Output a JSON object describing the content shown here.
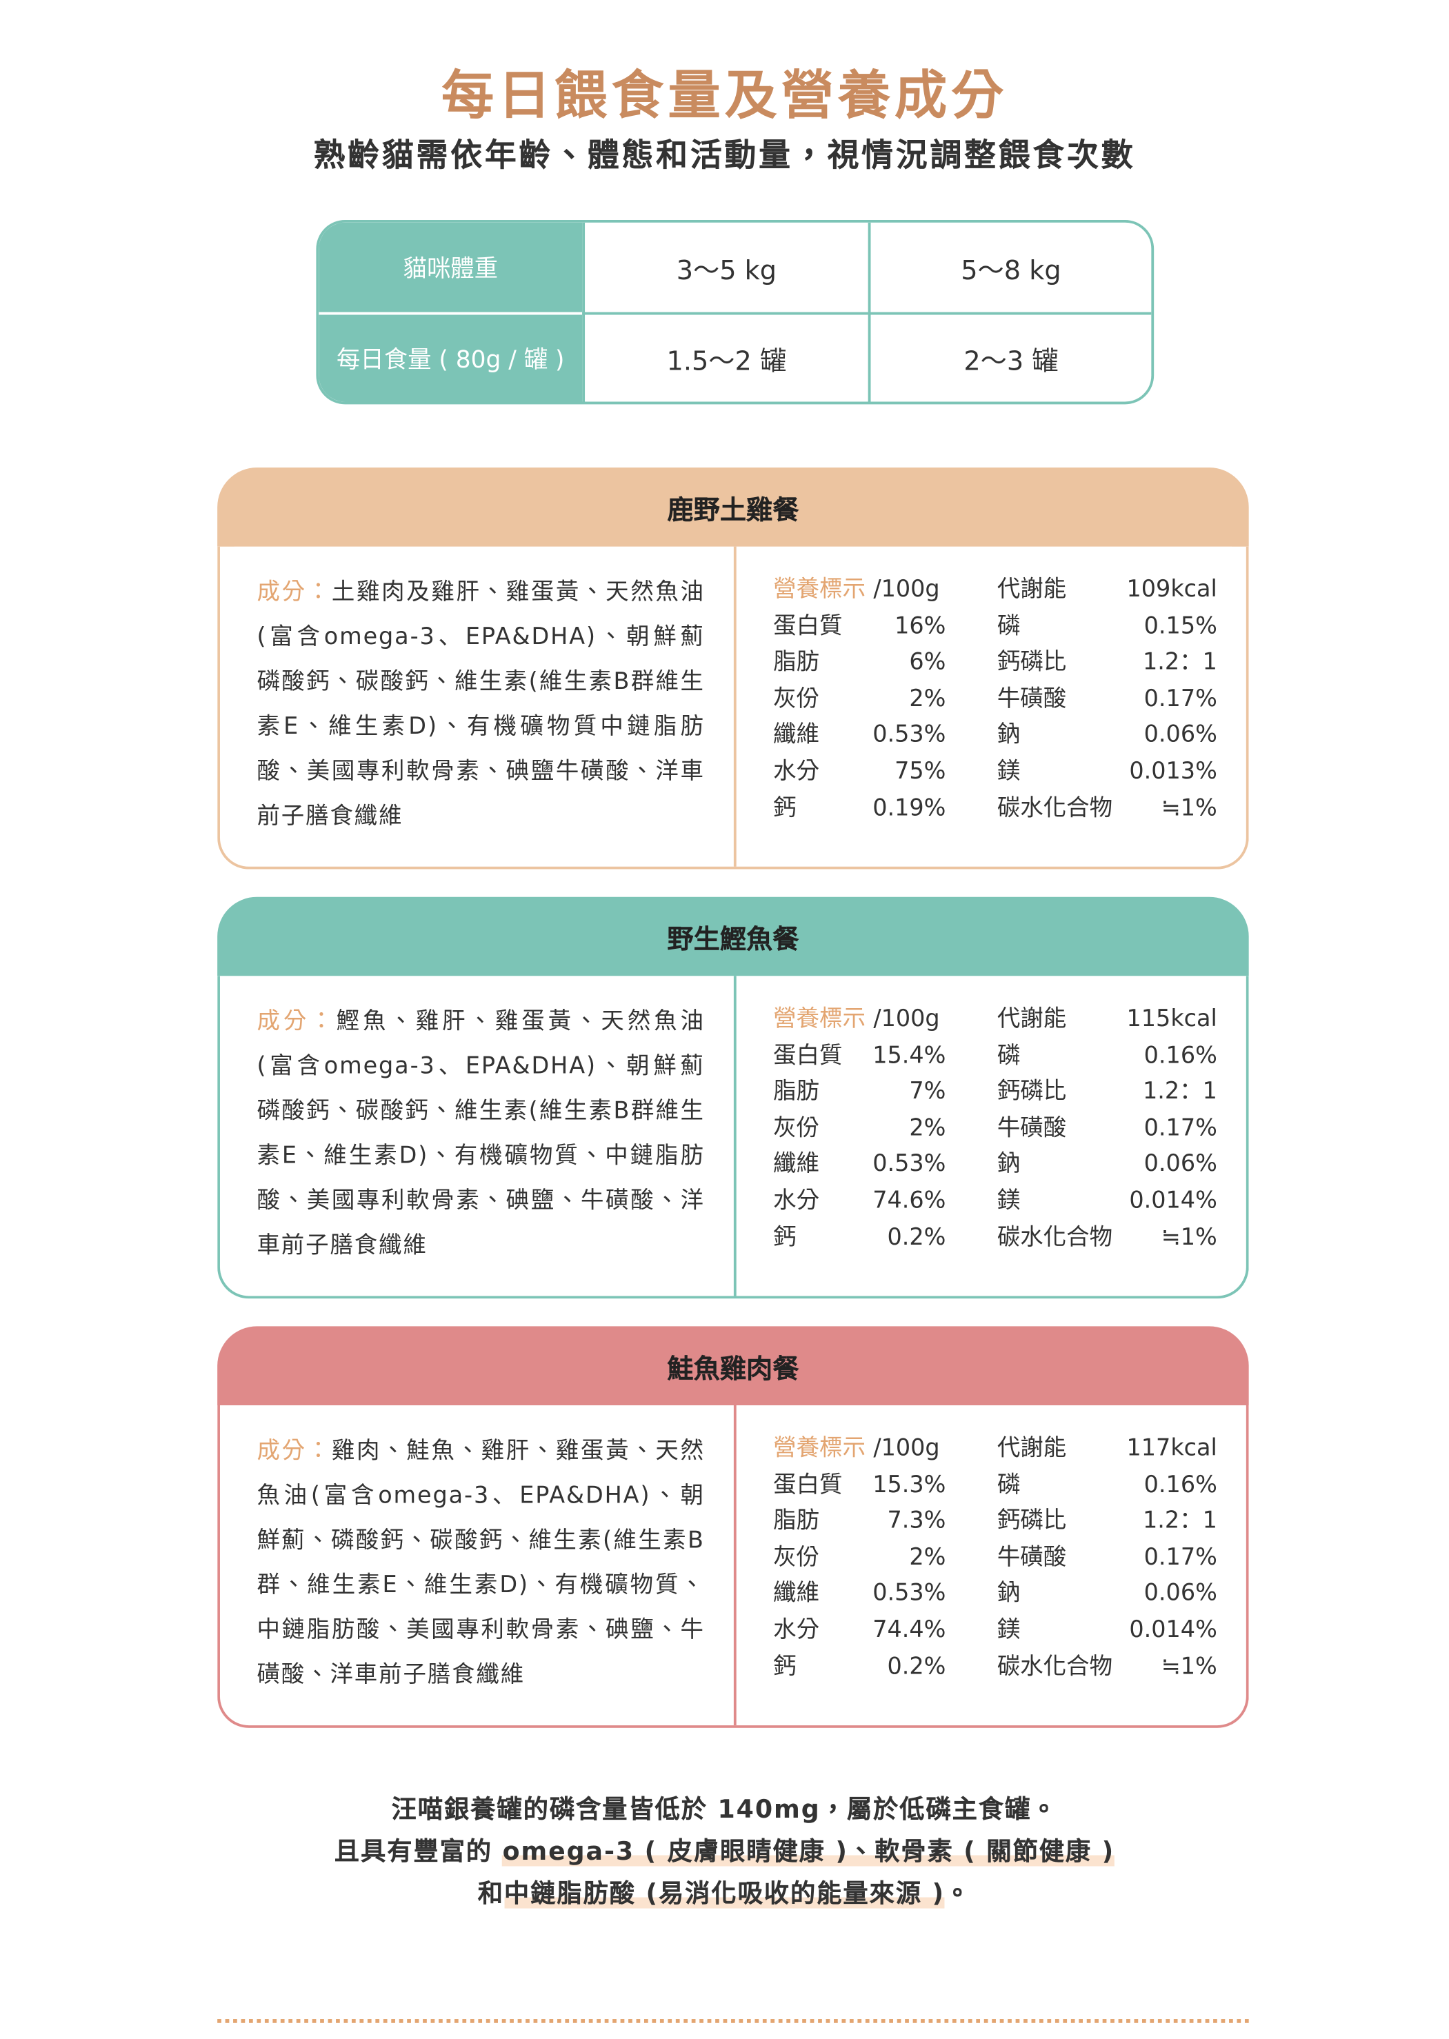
{
  "header": {
    "title": "每日餵食量及營養成分",
    "subtitle": "熟齡貓需依年齡、體態和活動量，視情況調整餵食次數"
  },
  "table": {
    "rows": [
      [
        "貓咪體重",
        "3～5 kg",
        "5～8 kg"
      ],
      [
        "每日食量 ( 80g / 罐 )",
        "1.5～2 罐",
        "2～3 罐"
      ]
    ]
  },
  "recipes": [
    {
      "name": "鹿野土雞餐",
      "ingredients_label": "成分：",
      "ingredients": "土雞肉及雞肝、雞蛋黃、天然魚油(富含omega-3、EPA&DHA)、朝鮮薊磷酸鈣、碳酸鈣、維生素(維生素B群維生素E、維生素D)、有機礦物質中鏈脂肪酸、美國專利軟骨素、碘鹽牛磺酸、洋車前子膳食纖維",
      "nutrition_label": "營養標示",
      "nutrition_unit": "/100g",
      "left": [
        [
          "蛋白質",
          "16%"
        ],
        [
          "脂肪",
          "6%"
        ],
        [
          "灰份",
          "2%"
        ],
        [
          "纖維",
          "0.53%"
        ],
        [
          "水分",
          "75%"
        ],
        [
          "鈣",
          "0.19%"
        ]
      ],
      "right": [
        [
          "代謝能",
          "109kcal"
        ],
        [
          "磷",
          "0.15%"
        ],
        [
          "鈣磷比",
          "1.2：1"
        ],
        [
          "牛磺酸",
          "0.17%"
        ],
        [
          "鈉",
          "0.06%"
        ],
        [
          "鎂",
          "0.013%"
        ],
        [
          "碳水化合物",
          "≒1%"
        ]
      ]
    },
    {
      "name": "野生鰹魚餐",
      "ingredients_label": "成分：",
      "ingredients": "鰹魚、雞肝、雞蛋黃、天然魚油(富含omega-3、EPA&DHA)、朝鮮薊磷酸鈣、碳酸鈣、維生素(維生素B群維生素E、維生素D)、有機礦物質、中鏈脂肪酸、美國專利軟骨素、碘鹽、牛磺酸、洋車前子膳食纖維",
      "nutrition_label": "營養標示",
      "nutrition_unit": "/100g",
      "left": [
        [
          "蛋白質",
          "15.4%"
        ],
        [
          "脂肪",
          "7%"
        ],
        [
          "灰份",
          "2%"
        ],
        [
          "纖維",
          "0.53%"
        ],
        [
          "水分",
          "74.6%"
        ],
        [
          "鈣",
          "0.2%"
        ]
      ],
      "right": [
        [
          "代謝能",
          "115kcal"
        ],
        [
          "磷",
          "0.16%"
        ],
        [
          "鈣磷比",
          "1.2：1"
        ],
        [
          "牛磺酸",
          "0.17%"
        ],
        [
          "鈉",
          "0.06%"
        ],
        [
          "鎂",
          "0.014%"
        ],
        [
          "碳水化合物",
          "≒1%"
        ]
      ]
    },
    {
      "name": "鮭魚雞肉餐",
      "ingredients_label": "成分：",
      "ingredients": "雞肉、鮭魚、雞肝、雞蛋黃、天然魚油(富含omega-3、EPA&DHA)、朝鮮薊、磷酸鈣、碳酸鈣、維生素(維生素B群、維生素E、維生素D)、有機礦物質、中鏈脂肪酸、美國專利軟骨素、碘鹽、牛磺酸、洋車前子膳食纖維",
      "nutrition_label": "營養標示",
      "nutrition_unit": "/100g",
      "left": [
        [
          "蛋白質",
          "15.3%"
        ],
        [
          "脂肪",
          "7.3%"
        ],
        [
          "灰份",
          "2%"
        ],
        [
          "纖維",
          "0.53%"
        ],
        [
          "水分",
          "74.4%"
        ],
        [
          "鈣",
          "0.2%"
        ]
      ],
      "right": [
        [
          "代謝能",
          "117kcal"
        ],
        [
          "磷",
          "0.16%"
        ],
        [
          "鈣磷比",
          "1.2：1"
        ],
        [
          "牛磺酸",
          "0.17%"
        ],
        [
          "鈉",
          "0.06%"
        ],
        [
          "鎂",
          "0.014%"
        ],
        [
          "碳水化合物",
          "≒1%"
        ]
      ]
    }
  ],
  "footer": {
    "line1": "汪喵銀養罐的磷含量皆低於 140mg，屬於低磷主食罐。",
    "line2_plain": "且具有豐富的 ",
    "line2_highlight": "omega-3 ( 皮膚眼睛健康 )、軟骨素 ( 關節健康 )",
    "line3_plain": "和",
    "line3_highlight": "中鏈脂肪酸 (易消化吸收的能量來源 )",
    "line3_end": "。"
  }
}
